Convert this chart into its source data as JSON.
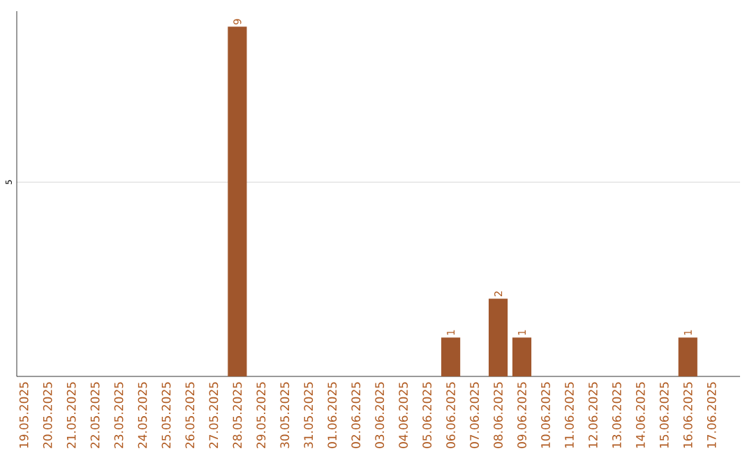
{
  "chart_data": {
    "type": "bar",
    "categories": [
      "19.05.2025",
      "20.05.2025",
      "21.05.2025",
      "22.05.2025",
      "23.05.2025",
      "24.05.2025",
      "25.05.2025",
      "26.05.2025",
      "27.05.2025",
      "28.05.2025",
      "29.05.2025",
      "30.05.2025",
      "31.05.2025",
      "01.06.2025",
      "02.06.2025",
      "03.06.2025",
      "04.06.2025",
      "05.06.2025",
      "06.06.2025",
      "07.06.2025",
      "08.06.2025",
      "09.06.2025",
      "10.06.2025",
      "11.06.2025",
      "12.06.2025",
      "13.06.2025",
      "14.06.2025",
      "15.06.2025",
      "16.06.2025",
      "17.06.2025"
    ],
    "values": [
      0,
      0,
      0,
      0,
      0,
      0,
      0,
      0,
      0,
      9,
      0,
      0,
      0,
      0,
      0,
      0,
      0,
      0,
      1,
      0,
      2,
      1,
      0,
      0,
      0,
      0,
      0,
      0,
      1,
      0
    ],
    "value_labels": [
      null,
      null,
      null,
      null,
      null,
      null,
      null,
      null,
      null,
      "9",
      null,
      null,
      null,
      null,
      null,
      null,
      null,
      null,
      "1",
      null,
      "2",
      "1",
      null,
      null,
      null,
      null,
      null,
      null,
      "1",
      null
    ],
    "color": "#a0562c",
    "ylim": [
      0,
      9.4
    ],
    "yticks": [
      5
    ],
    "grid": "y"
  }
}
